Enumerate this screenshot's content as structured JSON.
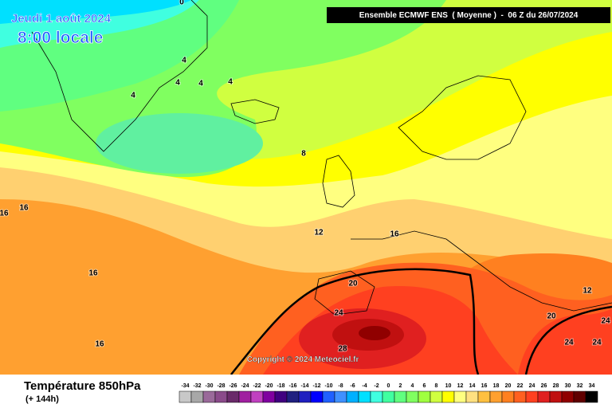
{
  "header": {
    "date": "Jeudi 1 août 2024",
    "time": "8:00 locale",
    "model_info": "Ensemble ECMWF ENS  ( Moyenne )  -  06 Z du 26/07/2024"
  },
  "map": {
    "copyright": "Copyright © 2024 Meteociel.fr",
    "contour_labels": [
      "0",
      "4",
      "4",
      "4",
      "4",
      "4",
      "8",
      "16",
      "16",
      "12",
      "16",
      "16",
      "20",
      "24",
      "16",
      "28",
      "12",
      "20",
      "24",
      "24",
      "24"
    ]
  },
  "footer": {
    "title": "Température 850hPa",
    "lead_time": "(+ 144h)"
  },
  "color_scale": {
    "values": [
      -34,
      -32,
      -30,
      -28,
      -26,
      -24,
      -22,
      -20,
      -18,
      -16,
      -14,
      -12,
      -10,
      -8,
      -6,
      -4,
      -2,
      0,
      2,
      4,
      6,
      8,
      10,
      12,
      14,
      16,
      18,
      20,
      22,
      24,
      26,
      28,
      30,
      32,
      34
    ],
    "colors": [
      "#c8c8c8",
      "#a8a8a8",
      "#9a6a9a",
      "#8a4a8a",
      "#6a2a6a",
      "#a020a0",
      "#c040c0",
      "#8000a0",
      "#400080",
      "#202080",
      "#2020c0",
      "#0000ff",
      "#2060ff",
      "#4090ff",
      "#00b0ff",
      "#00e0ff",
      "#40ffe0",
      "#40ffa0",
      "#60ff80",
      "#80ff60",
      "#a0ff40",
      "#d0ff40",
      "#ffff00",
      "#ffff80",
      "#ffe080",
      "#ffc040",
      "#ffa030",
      "#ff8020",
      "#ff6020",
      "#ff4020",
      "#e02020",
      "#c01010",
      "#900000",
      "#600000",
      "#000000"
    ]
  }
}
